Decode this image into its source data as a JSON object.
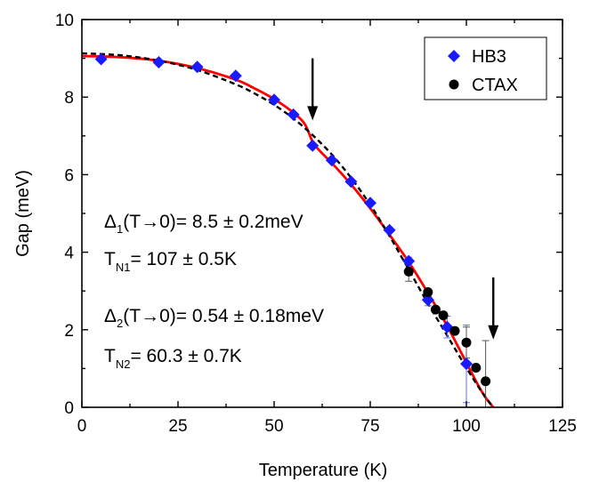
{
  "chart_data": {
    "type": "scatter",
    "xlabel": "Temperature (K)",
    "ylabel": "Gap (meV)",
    "xlim": [
      0,
      125
    ],
    "ylim": [
      0,
      10
    ],
    "x_ticks": [
      0,
      25,
      50,
      75,
      100,
      125
    ],
    "y_ticks": [
      0,
      2,
      4,
      6,
      8,
      10
    ],
    "grid": false,
    "legend_position": "top-right",
    "series": [
      {
        "name": "HB3",
        "marker": "diamond",
        "color": "#1a1aff",
        "x": [
          5,
          20,
          30,
          40,
          50,
          55,
          60,
          65,
          70,
          75,
          80,
          85,
          90,
          95,
          100
        ],
        "y": [
          8.98,
          8.9,
          8.78,
          8.55,
          7.93,
          7.55,
          6.75,
          6.37,
          5.82,
          5.27,
          4.57,
          3.77,
          2.77,
          2.07,
          1.12
        ],
        "yerr": [
          0,
          0,
          0,
          0,
          0,
          0,
          0,
          0,
          0,
          0,
          0,
          0.1,
          0.15,
          0.28,
          1.0
        ]
      },
      {
        "name": "CTAX",
        "marker": "circle",
        "color": "#000000",
        "x": [
          85,
          90,
          92,
          94,
          97,
          100,
          102.5,
          105
        ],
        "y": [
          3.5,
          2.97,
          2.52,
          2.37,
          1.97,
          1.67,
          1.02,
          0.67
        ],
        "yerr": [
          0.25,
          0,
          0,
          0,
          0,
          0.4,
          0,
          1.05
        ]
      }
    ],
    "fit_curves": [
      {
        "style": "solid",
        "color": "#ff0000",
        "x": [
          0,
          10,
          20,
          30,
          40,
          45,
          50,
          55,
          58,
          60,
          62,
          65,
          70,
          75,
          80,
          85,
          90,
          95,
          100,
          103,
          105,
          107
        ],
        "y": [
          9.06,
          9.03,
          8.94,
          8.75,
          8.45,
          8.22,
          7.95,
          7.6,
          7.3,
          6.85,
          6.6,
          6.3,
          5.75,
          5.13,
          4.45,
          3.75,
          2.95,
          2.1,
          1.15,
          0.58,
          0.25,
          0.0
        ]
      },
      {
        "style": "dashed",
        "color": "#000000",
        "x": [
          0,
          10,
          20,
          30,
          40,
          45,
          50,
          55,
          60,
          65,
          70,
          75,
          80,
          85,
          90,
          95,
          100,
          104,
          107
        ],
        "y": [
          9.13,
          9.08,
          8.94,
          8.7,
          8.33,
          8.09,
          7.8,
          7.45,
          7.02,
          6.52,
          5.92,
          5.22,
          4.42,
          3.55,
          2.68,
          1.85,
          1.02,
          0.4,
          0.0
        ]
      }
    ],
    "arrows": [
      {
        "x": 60,
        "y_top": 9.0,
        "y_bottom": 7.4
      },
      {
        "x": 107,
        "y_top": 3.35,
        "y_bottom": 1.75
      }
    ],
    "annotations": {
      "delta1_sym": "Δ",
      "delta1_sub": "1",
      "delta1_text": "(T→0)= 8.5 ± 0.2meV",
      "tn1_sym": "T",
      "tn1_sub": "N1",
      "tn1_text": "= 107 ± 0.5K",
      "delta2_sym": "Δ",
      "delta2_sub": "2",
      "delta2_text": "(T→0)= 0.54 ± 0.18meV",
      "tn2_sym": "T",
      "tn2_sub": "N2",
      "tn2_text": "= 60.3 ± 0.7K"
    }
  }
}
